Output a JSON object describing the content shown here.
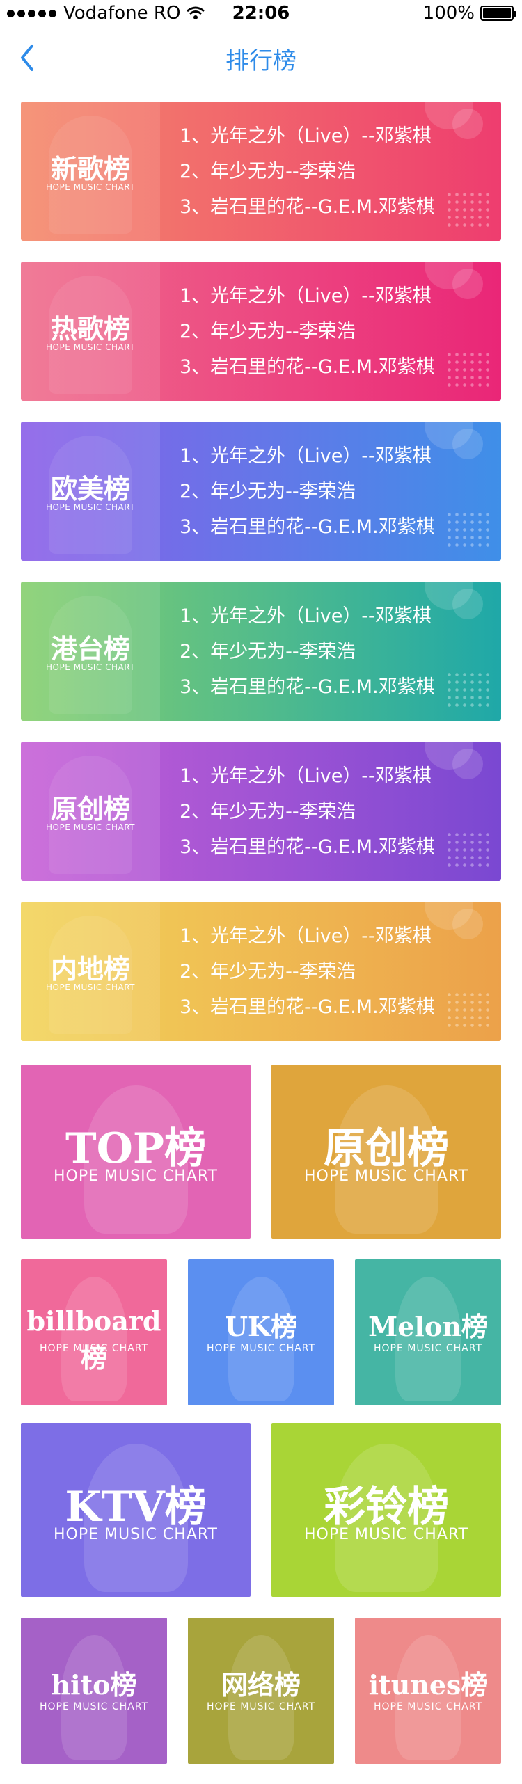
{
  "status_bar": {
    "carrier": "Vodafone RO",
    "time": "22:06",
    "battery": "100%"
  },
  "nav": {
    "title": "排行榜"
  },
  "charts": [
    {
      "name": "新歌榜",
      "subtitle": "HOPE MUSIC CHART",
      "songs": [
        "1、光年之外（Live）--邓紫棋",
        "2、年少无为--李荣浩",
        "3、岩石里的花--G.E.M.邓紫棋"
      ],
      "gradient": [
        "#f4896a",
        "#ee3d6f"
      ]
    },
    {
      "name": "热歌榜",
      "subtitle": "HOPE MUSIC CHART",
      "songs": [
        "1、光年之外（Live）--邓紫棋",
        "2、年少无为--李荣浩",
        "3、岩石里的花--G.E.M.邓紫棋"
      ],
      "gradient": [
        "#ef6c8c",
        "#ea2677"
      ]
    },
    {
      "name": "欧美榜",
      "subtitle": "HOPE MUSIC CHART",
      "songs": [
        "1、光年之外（Live）--邓紫棋",
        "2、年少无为--李荣浩",
        "3、岩石里的花--G.E.M.邓紫棋"
      ],
      "gradient": [
        "#8a5ee8",
        "#3f8fe8"
      ]
    },
    {
      "name": "港台榜",
      "subtitle": "HOPE MUSIC CHART",
      "songs": [
        "1、光年之外（Live）--邓紫棋",
        "2、年少无为--李荣浩",
        "3、岩石里的花--G.E.M.邓紫棋"
      ],
      "gradient": [
        "#86cf6e",
        "#1fa8a8"
      ]
    },
    {
      "name": "原创榜",
      "subtitle": "HOPE MUSIC CHART",
      "songs": [
        "1、光年之外（Live）--邓紫棋",
        "2、年少无为--李荣浩",
        "3、岩石里的花--G.E.M.邓紫棋"
      ],
      "gradient": [
        "#c760d6",
        "#7a48d2"
      ]
    },
    {
      "name": "内地榜",
      "subtitle": "HOPE MUSIC CHART",
      "songs": [
        "1、光年之外（Live）--邓紫棋",
        "2、年少无为--李荣浩",
        "3、岩石里的花--G.E.M.邓紫棋"
      ],
      "gradient": [
        "#f2d45a",
        "#eca14a"
      ]
    }
  ],
  "tiles_row1": [
    {
      "name": "TOP榜",
      "subtitle": "HOPE MUSIC CHART",
      "color": "#e264b4"
    },
    {
      "name": "原创榜",
      "subtitle": "HOPE MUSIC CHART",
      "color": "#dfa53c"
    }
  ],
  "tiles_row2": [
    {
      "name": "billboard榜",
      "subtitle": "HOPE MUSIC CHART",
      "color": "#f0699a"
    },
    {
      "name": "UK榜",
      "subtitle": "HOPE MUSIC CHART",
      "color": "#5b8ff0"
    },
    {
      "name": "Melon榜",
      "subtitle": "HOPE MUSIC CHART",
      "color": "#45b5a4"
    }
  ],
  "tiles_row3": [
    {
      "name": "KTV榜",
      "subtitle": "HOPE MUSIC CHART",
      "color": "#7d6ee6"
    },
    {
      "name": "彩铃榜",
      "subtitle": "HOPE MUSIC CHART",
      "color": "#a9d536"
    }
  ],
  "tiles_row4": [
    {
      "name": "hito榜",
      "subtitle": "HOPE MUSIC CHART",
      "color": "#a561c7"
    },
    {
      "name": "网络榜",
      "subtitle": "HOPE MUSIC CHART",
      "color": "#a8a43c"
    },
    {
      "name": "itunes榜",
      "subtitle": "HOPE MUSIC CHART",
      "color": "#ee8a8a"
    }
  ]
}
